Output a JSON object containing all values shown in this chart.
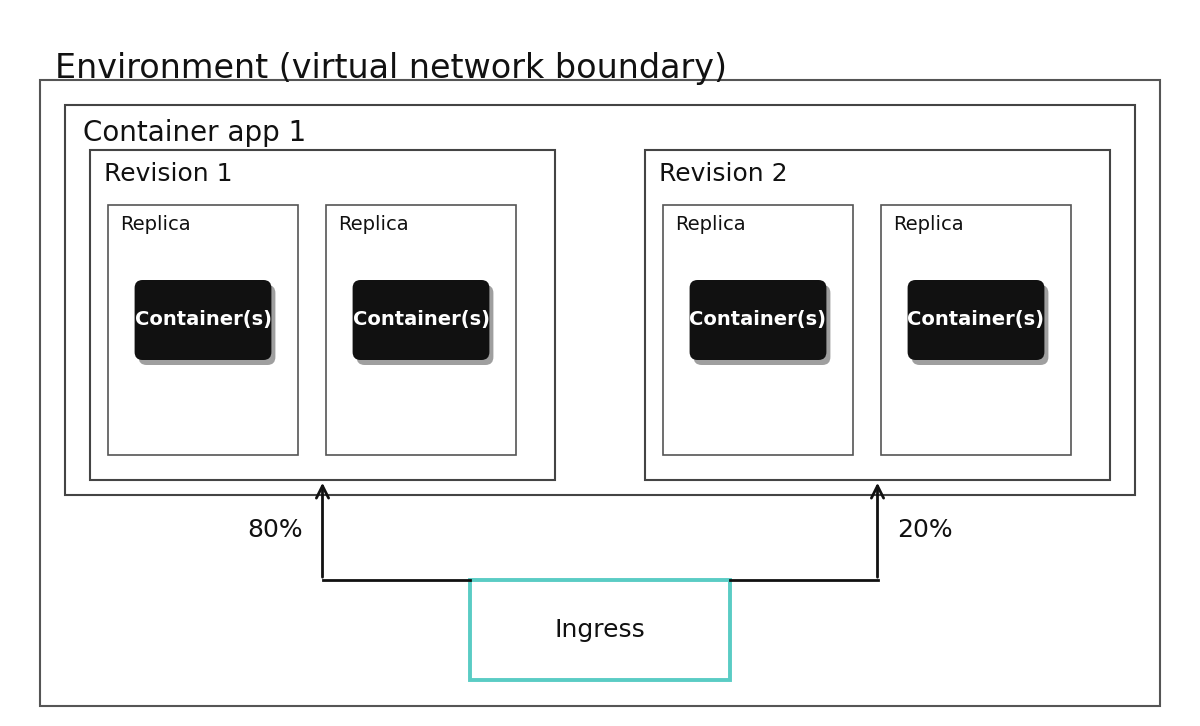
{
  "title": "Environment (virtual network boundary)",
  "container_app_label": "Container app 1",
  "revision1_label": "Revision 1",
  "revision2_label": "Revision 2",
  "replica_label": "Replica",
  "container_label": "Container(s)",
  "ingress_label": "Ingress",
  "pct_left": "80%",
  "pct_right": "20%",
  "bg_color": "#ffffff",
  "box_edge_color": "#444444",
  "env_edge_color": "#555555",
  "container_btn_color": "#111111",
  "container_btn_text": "#ffffff",
  "ingress_box_color": "#5accc4",
  "arrow_color": "#111111",
  "shadow_color": "#888888",
  "title_fontsize": 24,
  "app_label_fontsize": 20,
  "revision_label_fontsize": 18,
  "replica_label_fontsize": 14,
  "container_fontsize": 14,
  "ingress_fontsize": 18,
  "pct_fontsize": 18
}
